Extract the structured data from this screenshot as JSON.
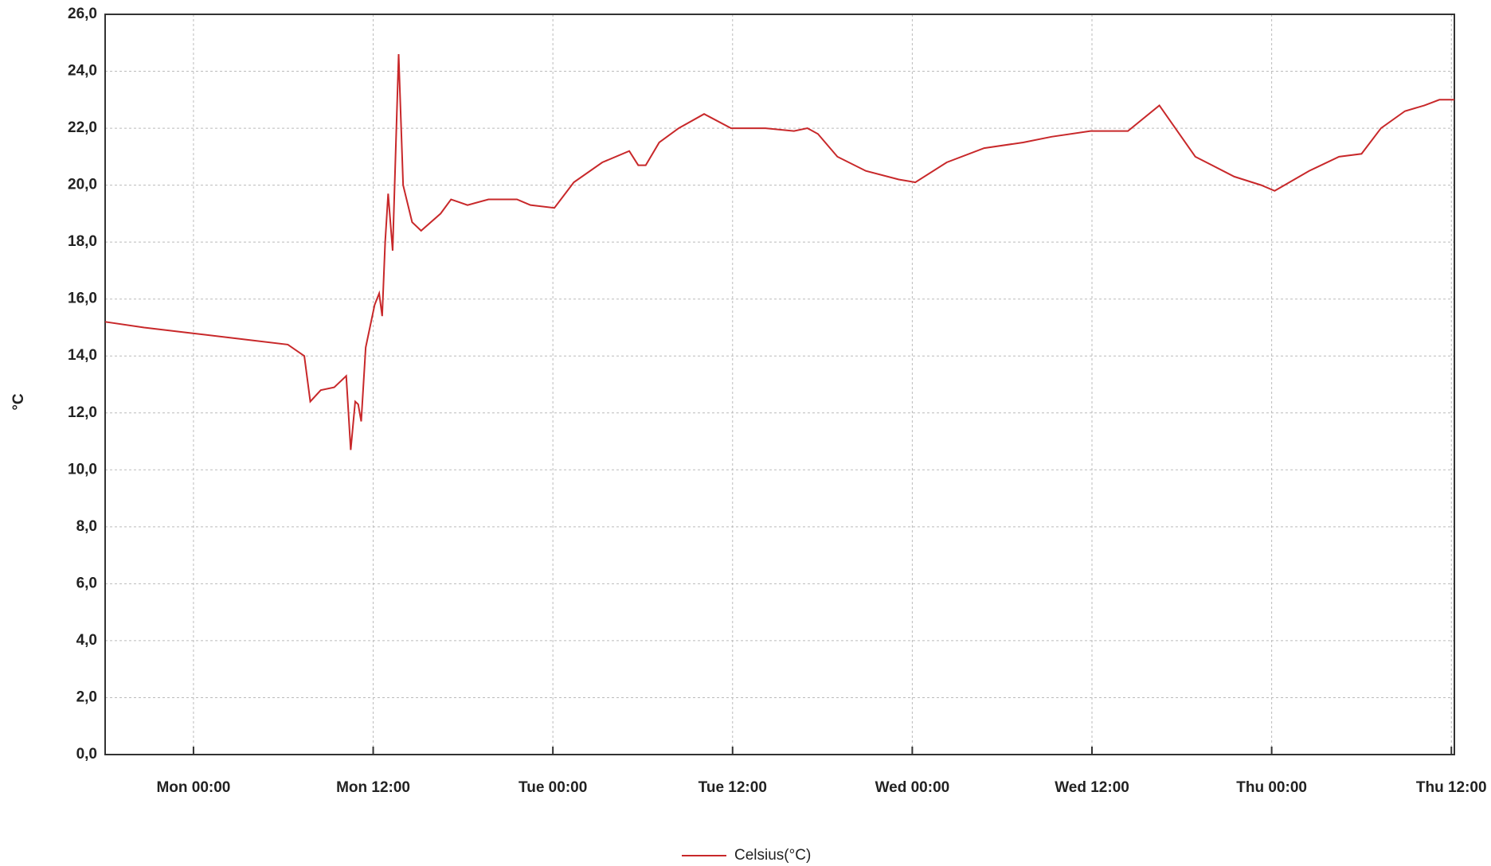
{
  "chart_data": {
    "type": "line",
    "y_label": "°C",
    "x": [
      -5.9,
      -3.3,
      -0.1,
      3.1,
      6.3,
      7.4,
      7.8,
      8.5,
      9.4,
      10.2,
      10.5,
      10.8,
      11.0,
      11.2,
      11.5,
      12.1,
      12.4,
      12.6,
      12.8,
      13.0,
      13.3,
      13.7,
      14.0,
      14.6,
      15.2,
      16.5,
      17.2,
      18.3,
      19.7,
      21.6,
      22.5,
      24.1,
      25.4,
      27.3,
      29.1,
      29.7,
      30.2,
      31.1,
      32.4,
      34.1,
      35.9,
      38.2,
      40.1,
      41.0,
      41.7,
      43.0,
      44.9,
      47.1,
      48.2,
      50.3,
      52.8,
      55.4,
      57.3,
      59.9,
      62.4,
      64.5,
      66.9,
      69.5,
      71.3,
      72.2,
      74.5,
      76.5,
      78.0,
      79.3,
      80.9,
      82.2,
      83.2,
      84.2
    ],
    "series": [
      {
        "name": "Celsius(°C)",
        "color": "#c8282a",
        "values": [
          15.2,
          15.0,
          14.8,
          14.6,
          14.4,
          14.0,
          12.4,
          12.8,
          12.9,
          13.3,
          10.7,
          12.4,
          12.3,
          11.7,
          14.3,
          15.8,
          16.2,
          15.4,
          18.0,
          19.7,
          17.7,
          24.6,
          20.0,
          18.7,
          18.4,
          19.0,
          19.5,
          19.3,
          19.5,
          19.5,
          19.3,
          19.2,
          20.1,
          20.8,
          21.2,
          20.7,
          20.7,
          21.5,
          22.0,
          22.5,
          22.0,
          22.0,
          21.9,
          22.0,
          21.8,
          21.0,
          20.5,
          20.2,
          20.1,
          20.8,
          21.3,
          21.5,
          21.7,
          21.9,
          21.9,
          22.8,
          21.0,
          20.3,
          20.0,
          19.8,
          20.5,
          21.0,
          21.1,
          22.0,
          22.6,
          22.8,
          23.0,
          23.0
        ]
      }
    ],
    "xlim": [
      -5.9,
      84.2
    ],
    "xticks": [
      {
        "value": 0,
        "label": "Mon 00:00"
      },
      {
        "value": 12,
        "label": "Mon 12:00"
      },
      {
        "value": 24,
        "label": "Tue 00:00"
      },
      {
        "value": 36,
        "label": "Tue 12:00"
      },
      {
        "value": 48,
        "label": "Wed 00:00"
      },
      {
        "value": 60,
        "label": "Wed 12:00"
      },
      {
        "value": 72,
        "label": "Thu 00:00"
      },
      {
        "value": 84,
        "label": "Thu 12:00"
      }
    ],
    "ylim": [
      0,
      26
    ],
    "yticks": [
      {
        "value": 0,
        "label": "0,0"
      },
      {
        "value": 2,
        "label": "2,0"
      },
      {
        "value": 4,
        "label": "4,0"
      },
      {
        "value": 6,
        "label": "6,0"
      },
      {
        "value": 8,
        "label": "8,0"
      },
      {
        "value": 10,
        "label": "10,0"
      },
      {
        "value": 12,
        "label": "12,0"
      },
      {
        "value": 14,
        "label": "14,0"
      },
      {
        "value": 16,
        "label": "16,0"
      },
      {
        "value": 18,
        "label": "18,0"
      },
      {
        "value": 20,
        "label": "20,0"
      },
      {
        "value": 22,
        "label": "22,0"
      },
      {
        "value": 24,
        "label": "24,0"
      },
      {
        "value": 26,
        "label": "26,0"
      }
    ],
    "grid": true,
    "legend": "bottom"
  }
}
